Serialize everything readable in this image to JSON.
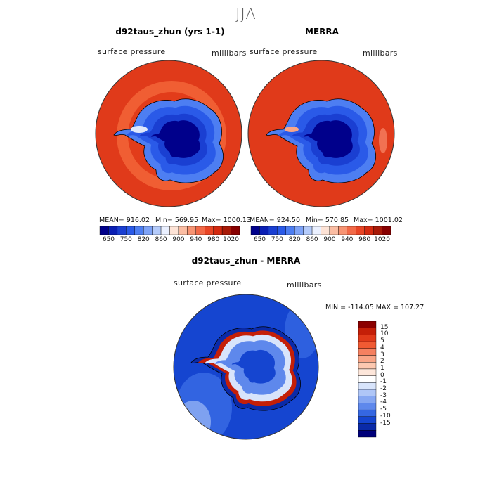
{
  "season": "JJA",
  "panels": [
    {
      "title": "d92taus_zhun (yrs 1-1)",
      "variable": "surface pressure",
      "units": "millibars",
      "stats": {
        "mean": "MEAN= 916.02",
        "min": "Min= 569.95",
        "max": "Max= 1000.13"
      }
    },
    {
      "title": "MERRA",
      "variable": "surface pressure",
      "units": "millibars",
      "stats": {
        "mean": "MEAN= 924.50",
        "min": "Min= 570.85",
        "max": "Max= 1001.02"
      }
    }
  ],
  "diff": {
    "title": "d92taus_zhun - MERRA",
    "variable": "surface pressure",
    "units": "millibars",
    "minmax": "MIN = -114.05 MAX = 107.27"
  },
  "colorbar": {
    "labels": [
      "650",
      "750",
      "820",
      "860",
      "900",
      "940",
      "980",
      "1020"
    ],
    "colors": [
      "#00008b",
      "#0a1fb4",
      "#1a3fd2",
      "#2a5ae8",
      "#4d7ef2",
      "#7ea3f7",
      "#b4cbfb",
      "#eaf0ff",
      "#fde3d6",
      "#fbbda3",
      "#f79473",
      "#f26a48",
      "#e84525",
      "#d42a10",
      "#a81a08",
      "#870000"
    ]
  },
  "diff_colorbar": {
    "labels": [
      "15",
      "10",
      "5",
      "4",
      "3",
      "2",
      "1",
      "0",
      "-1",
      "-2",
      "-3",
      "-4",
      "-5",
      "-10",
      "-15"
    ],
    "colors": [
      "#8b0000",
      "#c41f08",
      "#e03a1a",
      "#f05a33",
      "#f58060",
      "#f9a587",
      "#fcc8b0",
      "#fde6da",
      "#ffffff",
      "#d8e4fb",
      "#afc6f7",
      "#86a7f2",
      "#5e88ec",
      "#3567e2",
      "#1545d0",
      "#0a2aa8",
      "#00007a"
    ]
  }
}
